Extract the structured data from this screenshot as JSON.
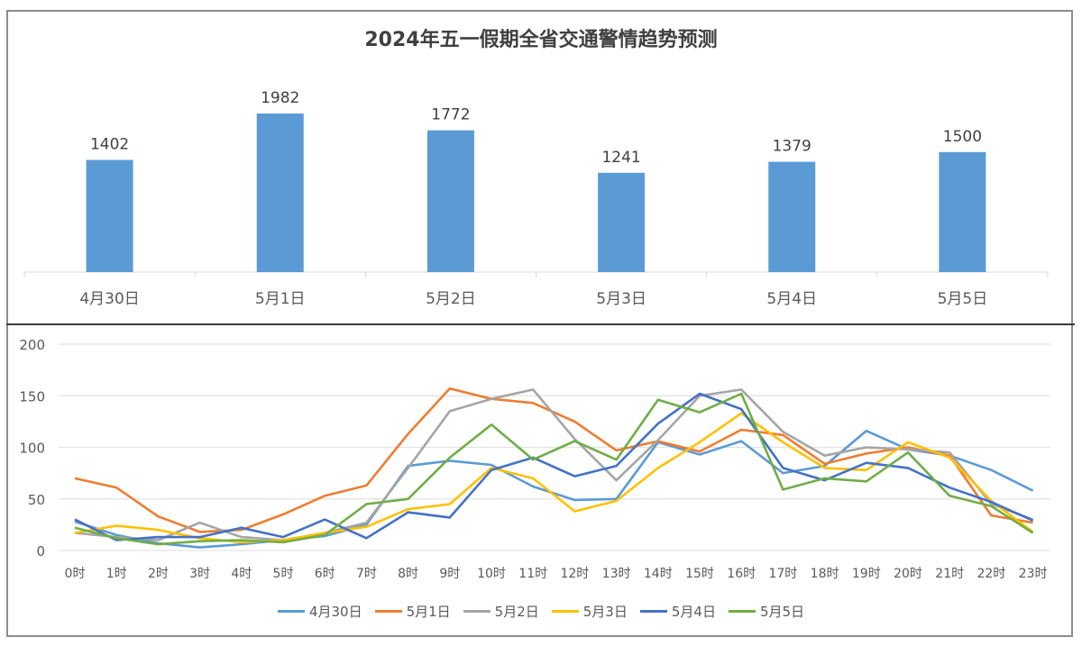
{
  "chart_data": [
    {
      "type": "bar",
      "title": "2024年五一假期全省交通警情趋势预测",
      "categories": [
        "4月30日",
        "5月1日",
        "5月2日",
        "5月3日",
        "5月4日",
        "5月5日"
      ],
      "values": [
        1402,
        1982,
        1772,
        1241,
        1379,
        1500
      ],
      "data_labels": true,
      "bar_color": "#5B9BD5",
      "xlabel": "",
      "ylabel": "",
      "y_axis_visible": false,
      "grid": false
    },
    {
      "type": "line",
      "title": "",
      "x": [
        "0时",
        "1时",
        "2时",
        "3时",
        "4时",
        "5时",
        "6时",
        "7时",
        "8时",
        "9时",
        "10时",
        "11时",
        "12时",
        "13时",
        "14时",
        "15时",
        "16时",
        "17时",
        "18时",
        "19时",
        "20时",
        "21时",
        "22时",
        "23时"
      ],
      "ylim": [
        0,
        200
      ],
      "yticks": [
        0,
        50,
        100,
        150,
        200
      ],
      "grid": true,
      "legend_position": "bottom",
      "series": [
        {
          "name": "4月30日",
          "color": "#5B9BD5",
          "values": [
            28,
            15,
            7,
            3,
            6,
            10,
            14,
            25,
            82,
            87,
            83,
            62,
            49,
            50,
            105,
            93,
            106,
            75,
            82,
            116,
            98,
            92,
            78,
            58
          ]
        },
        {
          "name": "5月1日",
          "color": "#ED7D31",
          "values": [
            70,
            61,
            33,
            18,
            20,
            35,
            53,
            63,
            113,
            157,
            147,
            143,
            125,
            97,
            106,
            96,
            117,
            112,
            84,
            94,
            100,
            92,
            34,
            27
          ]
        },
        {
          "name": "5月2日",
          "color": "#A5A5A5",
          "values": [
            17,
            13,
            10,
            27,
            13,
            10,
            17,
            27,
            80,
            135,
            147,
            156,
            108,
            68,
            107,
            150,
            156,
            115,
            92,
            100,
            98,
            95,
            45,
            30
          ]
        },
        {
          "name": "5月3日",
          "color": "#FFC000",
          "values": [
            17,
            24,
            20,
            12,
            8,
            10,
            17,
            23,
            40,
            45,
            80,
            70,
            38,
            48,
            80,
            105,
            133,
            105,
            80,
            78,
            105,
            90,
            48,
            18
          ]
        },
        {
          "name": "5月4日",
          "color": "#4472C4",
          "values": [
            30,
            10,
            13,
            13,
            22,
            13,
            30,
            12,
            37,
            32,
            78,
            90,
            72,
            82,
            123,
            152,
            137,
            80,
            68,
            85,
            80,
            61,
            47,
            29
          ]
        },
        {
          "name": "5月5日",
          "color": "#70AD47",
          "values": [
            22,
            12,
            6,
            9,
            10,
            8,
            15,
            45,
            50,
            90,
            122,
            88,
            106,
            88,
            146,
            134,
            152,
            59,
            70,
            67,
            95,
            53,
            43,
            17
          ]
        }
      ]
    }
  ]
}
